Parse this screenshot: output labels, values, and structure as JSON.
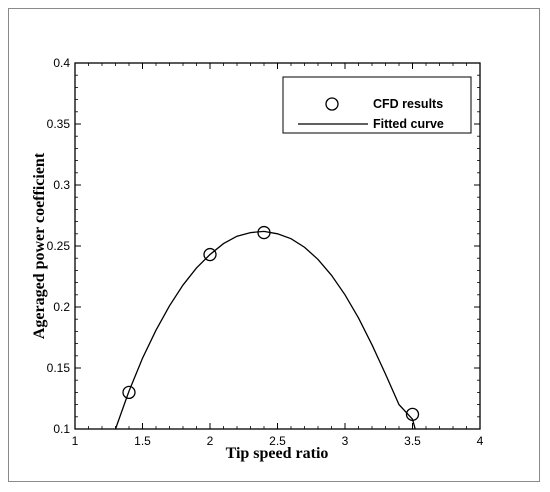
{
  "chart_data": {
    "type": "scatter",
    "title": "",
    "xlabel": "Tip speed ratio",
    "ylabel": "Ageraged power coefficient",
    "xlim": [
      1,
      4
    ],
    "ylim": [
      0.1,
      0.4
    ],
    "x_ticks": [
      1,
      1.5,
      2,
      2.5,
      3,
      3.5,
      4
    ],
    "x_tick_labels": [
      "1",
      "1.5",
      "2",
      "2.5",
      "3",
      "3.5",
      "4"
    ],
    "y_ticks": [
      0.1,
      0.15,
      0.2,
      0.25,
      0.3,
      0.35,
      0.4
    ],
    "y_tick_labels": [
      "0.1",
      "0.15",
      "0.2",
      "0.25",
      "0.3",
      "0.35",
      "0.4"
    ],
    "grid": false,
    "legend_position": "top-right",
    "series": [
      {
        "name": "CFD results",
        "kind": "markers",
        "marker": "circle-open",
        "x": [
          1.4,
          2.0,
          2.4,
          3.5
        ],
        "y": [
          0.13,
          0.243,
          0.261,
          0.112
        ]
      },
      {
        "name": "Fitted curve",
        "kind": "line",
        "x": [
          1.3,
          1.4,
          1.5,
          1.6,
          1.7,
          1.8,
          1.9,
          2.0,
          2.1,
          2.2,
          2.3,
          2.4,
          2.5,
          2.6,
          2.7,
          2.8,
          2.9,
          3.0,
          3.1,
          3.2,
          3.3,
          3.4,
          3.5,
          3.52
        ],
        "y": [
          0.1,
          0.131,
          0.158,
          0.181,
          0.201,
          0.218,
          0.232,
          0.243,
          0.252,
          0.258,
          0.261,
          0.262,
          0.26,
          0.256,
          0.249,
          0.239,
          0.226,
          0.21,
          0.191,
          0.169,
          0.145,
          0.12,
          0.108,
          0.1
        ]
      }
    ]
  }
}
